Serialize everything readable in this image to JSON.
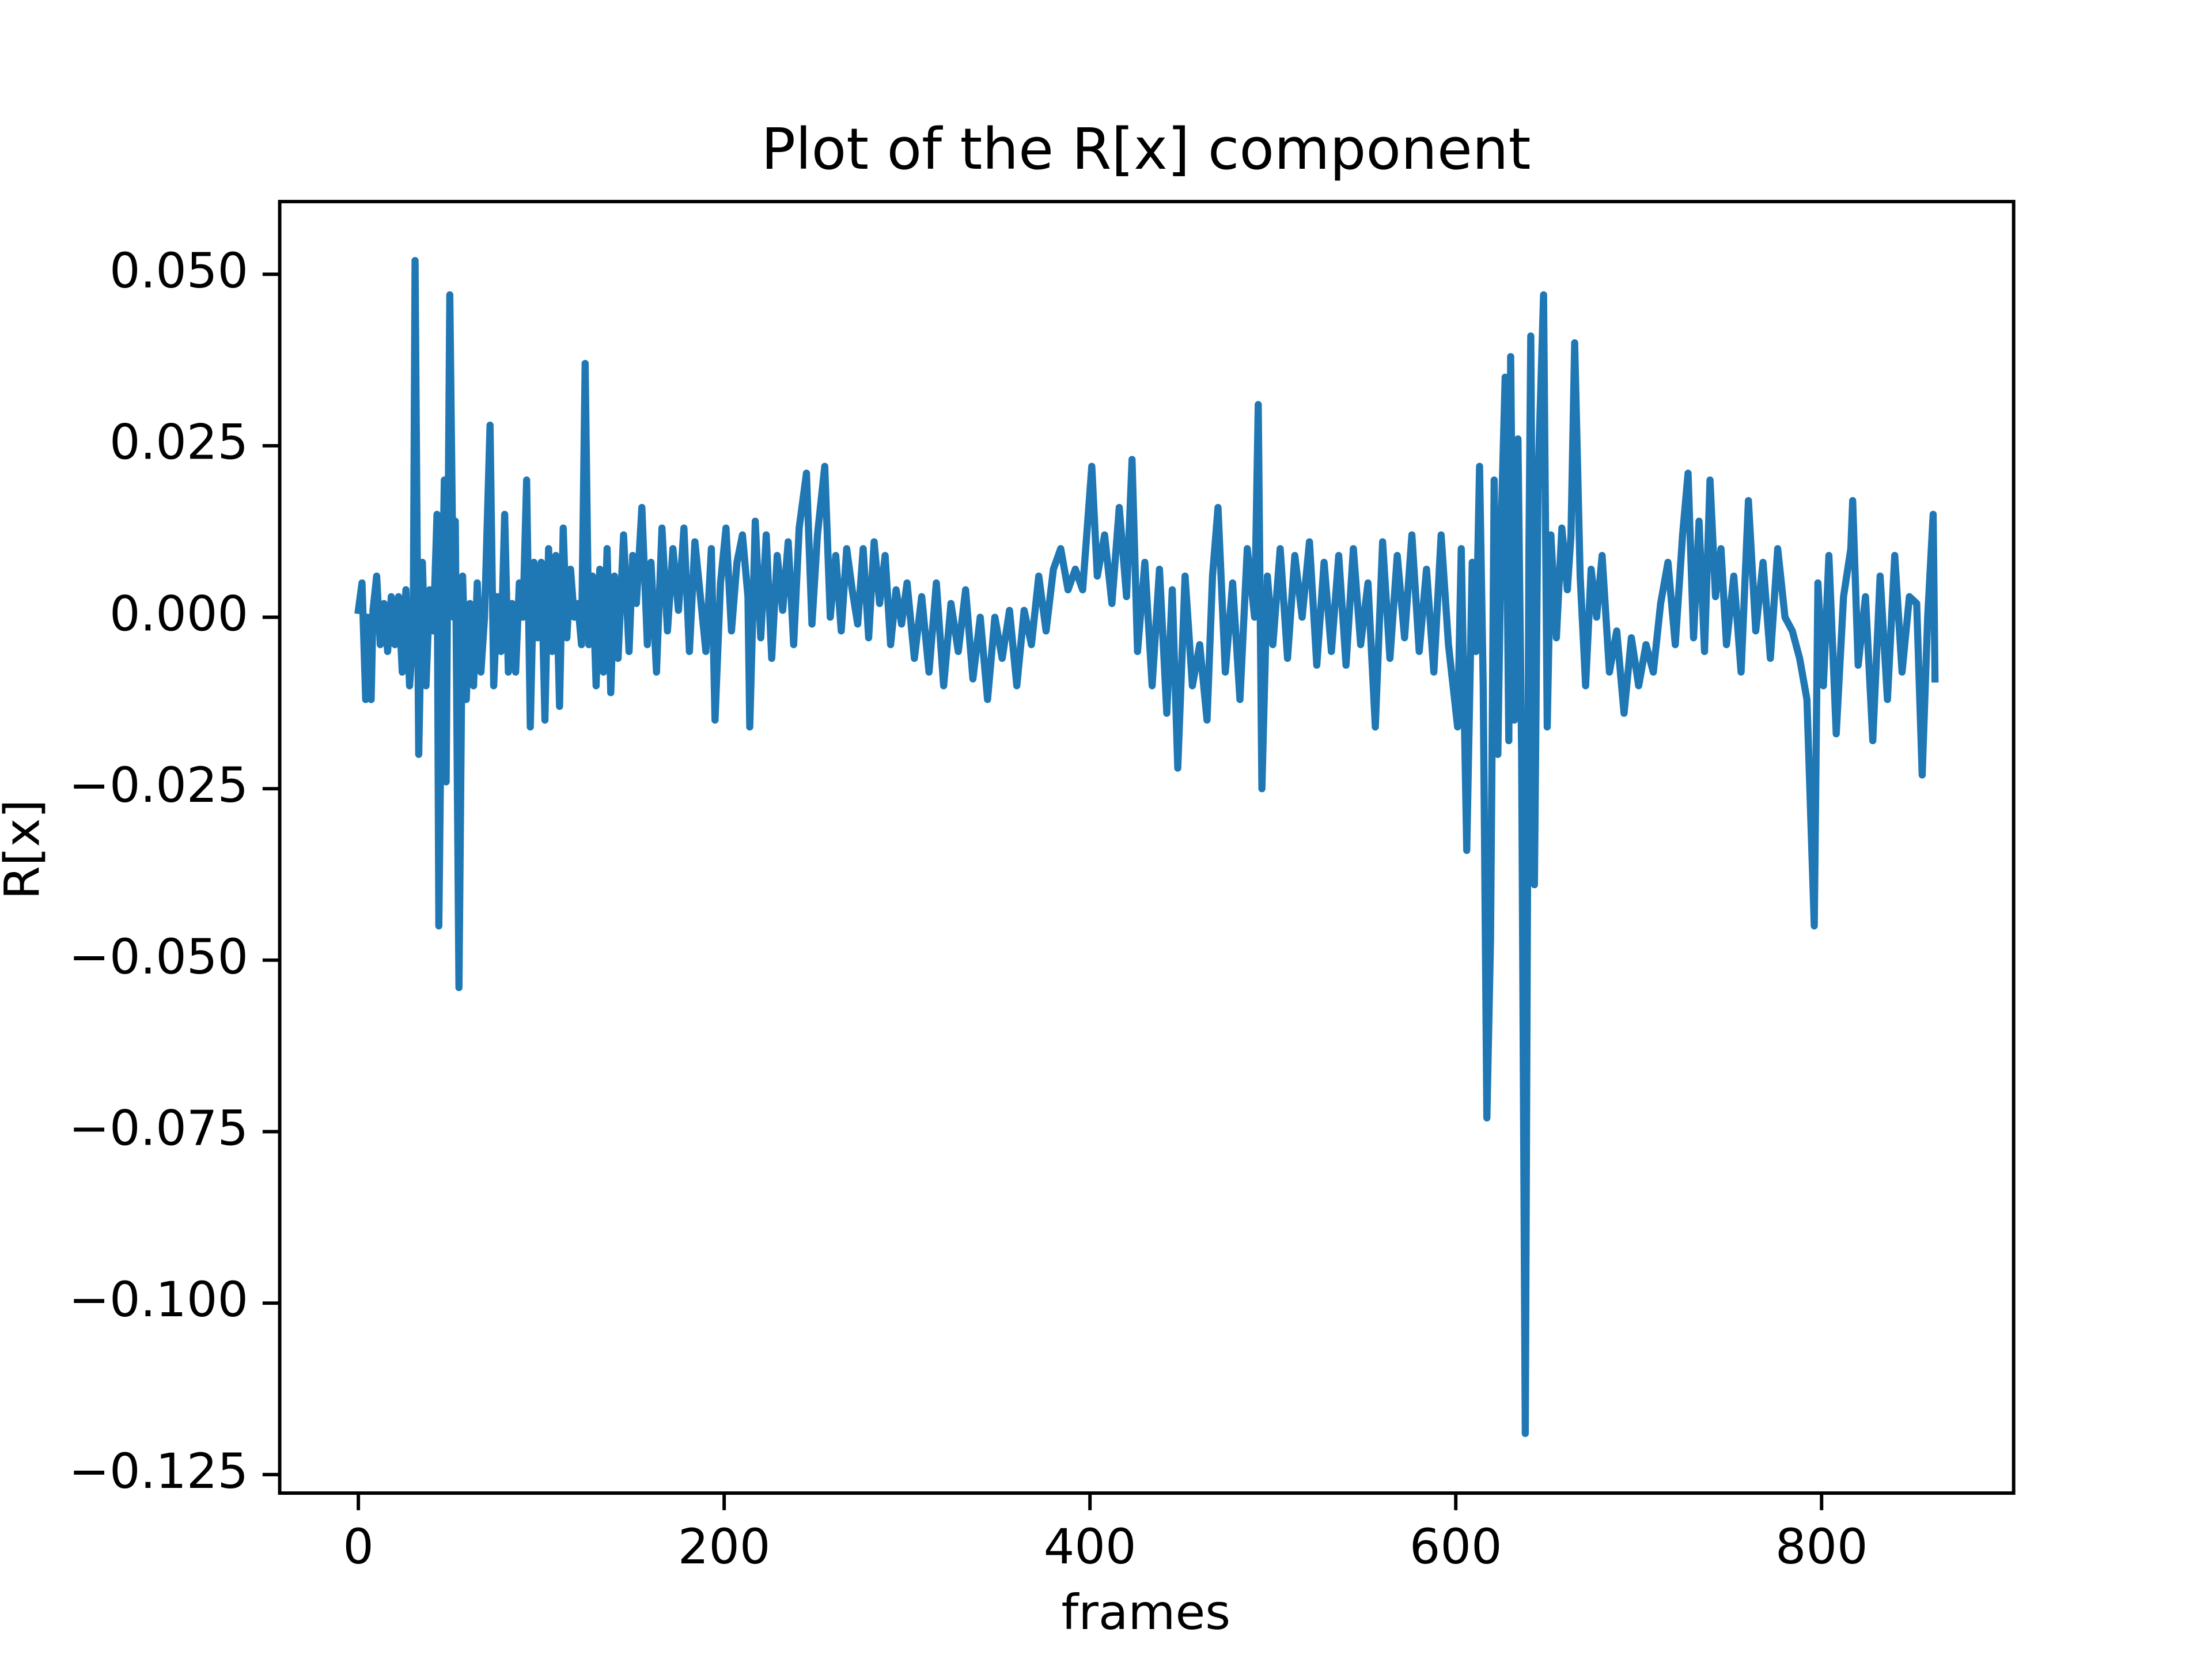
{
  "chart_data": {
    "type": "line",
    "title": "Plot of the R[x] component",
    "xlabel": "frames",
    "ylabel": "R[x]",
    "color": "#1f77b4",
    "x": [
      0,
      2,
      4,
      5,
      7,
      8,
      10,
      12,
      14,
      16,
      18,
      20,
      22,
      24,
      26,
      28,
      30,
      31,
      33,
      35,
      37,
      39,
      41,
      43,
      44,
      46,
      47,
      48,
      50,
      52,
      53,
      55,
      57,
      59,
      61,
      63,
      65,
      67,
      69,
      72,
      74,
      76,
      78,
      80,
      82,
      84,
      86,
      88,
      90,
      92,
      94,
      96,
      98,
      100,
      102,
      104,
      106,
      108,
      110,
      112,
      114,
      116,
      118,
      120,
      122,
      124,
      126,
      128,
      130,
      132,
      134,
      136,
      138,
      140,
      142,
      145,
      148,
      150,
      152,
      155,
      158,
      160,
      163,
      166,
      169,
      172,
      175,
      178,
      181,
      184,
      187,
      190,
      193,
      195,
      198,
      201,
      204,
      207,
      210,
      213,
      214,
      217,
      220,
      223,
      226,
      229,
      232,
      235,
      238,
      241,
      245,
      248,
      251,
      255,
      258,
      261,
      264,
      267,
      270,
      273,
      276,
      279,
      282,
      285,
      288,
      291,
      294,
      297,
      300,
      304,
      308,
      312,
      316,
      320,
      324,
      328,
      332,
      336,
      340,
      344,
      348,
      352,
      356,
      360,
      364,
      368,
      372,
      376,
      380,
      384,
      388,
      392,
      396,
      401,
      404,
      408,
      412,
      416,
      420,
      423,
      426,
      430,
      434,
      438,
      442,
      445,
      448,
      452,
      456,
      460,
      464,
      467,
      470,
      474,
      478,
      482,
      486,
      490,
      492,
      494,
      497,
      500,
      504,
      508,
      512,
      516,
      520,
      524,
      528,
      532,
      536,
      540,
      544,
      548,
      552,
      556,
      560,
      564,
      568,
      572,
      576,
      580,
      584,
      588,
      592,
      596,
      601,
      603,
      606,
      609,
      611,
      613,
      615,
      617,
      619,
      621,
      623,
      625,
      627,
      629,
      630,
      632,
      634,
      636,
      638,
      640,
      641,
      643,
      645,
      648,
      650,
      652,
      655,
      658,
      661,
      663,
      665,
      668,
      671,
      674,
      677,
      680,
      684,
      688,
      692,
      696,
      700,
      704,
      708,
      712,
      716,
      720,
      724,
      727,
      730,
      733,
      736,
      739,
      742,
      745,
      748,
      752,
      756,
      760,
      764,
      768,
      772,
      776,
      780,
      784,
      788,
      792,
      796,
      798,
      801,
      804,
      808,
      812,
      816,
      817,
      820,
      824,
      828,
      832,
      836,
      840,
      844,
      848,
      852,
      855,
      858,
      861,
      862
    ],
    "values": [
      0.001,
      0.005,
      -0.012,
      0.0,
      -0.012,
      0.001,
      0.006,
      -0.004,
      0.002,
      -0.005,
      0.003,
      -0.004,
      0.003,
      -0.008,
      0.004,
      -0.01,
      -0.002,
      0.052,
      -0.02,
      0.008,
      -0.01,
      0.004,
      -0.002,
      0.015,
      -0.045,
      0.004,
      0.02,
      -0.024,
      0.047,
      0.0,
      0.014,
      -0.054,
      0.006,
      -0.012,
      0.002,
      -0.01,
      0.005,
      -0.008,
      0.0,
      0.028,
      -0.01,
      0.003,
      -0.005,
      0.015,
      -0.008,
      0.002,
      -0.008,
      0.005,
      0.0,
      0.02,
      -0.016,
      0.008,
      -0.003,
      0.008,
      -0.015,
      0.01,
      -0.005,
      0.009,
      -0.013,
      0.013,
      -0.003,
      0.007,
      0.0,
      0.002,
      -0.004,
      0.037,
      -0.004,
      0.006,
      -0.01,
      0.007,
      -0.008,
      0.01,
      -0.011,
      0.006,
      -0.006,
      0.012,
      -0.005,
      0.009,
      0.002,
      0.016,
      -0.004,
      0.008,
      -0.008,
      0.013,
      -0.002,
      0.01,
      0.001,
      0.013,
      -0.005,
      0.011,
      0.003,
      -0.005,
      0.01,
      -0.015,
      0.005,
      0.013,
      -0.002,
      0.008,
      0.012,
      0.003,
      -0.016,
      0.014,
      -0.003,
      0.012,
      -0.006,
      0.009,
      0.001,
      0.011,
      -0.004,
      0.013,
      0.021,
      -0.001,
      0.012,
      0.022,
      0.0,
      0.009,
      -0.002,
      0.01,
      0.004,
      -0.001,
      0.01,
      -0.003,
      0.011,
      0.002,
      0.009,
      -0.004,
      0.004,
      -0.001,
      0.005,
      -0.006,
      0.003,
      -0.008,
      0.005,
      -0.01,
      0.002,
      -0.005,
      0.004,
      -0.009,
      0.0,
      -0.012,
      0.0,
      -0.006,
      0.001,
      -0.01,
      0.001,
      -0.004,
      0.006,
      -0.002,
      0.007,
      0.01,
      0.004,
      0.007,
      0.004,
      0.022,
      0.006,
      0.012,
      0.002,
      0.016,
      0.003,
      0.023,
      -0.005,
      0.008,
      -0.01,
      0.007,
      -0.014,
      0.004,
      -0.022,
      0.006,
      -0.01,
      -0.004,
      -0.015,
      0.006,
      0.016,
      -0.008,
      0.005,
      -0.012,
      0.01,
      0.0,
      0.031,
      -0.025,
      0.006,
      -0.004,
      0.01,
      -0.006,
      0.009,
      0.0,
      0.011,
      -0.007,
      0.008,
      -0.005,
      0.009,
      -0.007,
      0.01,
      -0.004,
      0.005,
      -0.016,
      0.011,
      -0.006,
      0.009,
      -0.003,
      0.012,
      -0.005,
      0.007,
      -0.008,
      0.012,
      -0.004,
      -0.016,
      0.01,
      -0.034,
      0.008,
      -0.005,
      0.022,
      -0.01,
      -0.073,
      -0.047,
      0.02,
      -0.02,
      0.015,
      0.035,
      -0.018,
      0.038,
      -0.015,
      0.026,
      -0.02,
      -0.119,
      0.01,
      0.041,
      -0.039,
      0.02,
      0.047,
      -0.016,
      0.012,
      -0.003,
      0.013,
      0.004,
      0.012,
      0.04,
      0.006,
      -0.01,
      0.007,
      0.0,
      0.009,
      -0.008,
      -0.002,
      -0.014,
      -0.003,
      -0.01,
      -0.004,
      -0.008,
      0.002,
      0.008,
      -0.004,
      0.012,
      0.021,
      -0.003,
      0.014,
      -0.005,
      0.02,
      0.003,
      0.01,
      -0.004,
      0.006,
      -0.008,
      0.017,
      -0.002,
      0.008,
      -0.006,
      0.01,
      0.0,
      -0.002,
      -0.006,
      -0.012,
      -0.045,
      0.005,
      -0.01,
      0.009,
      -0.017,
      0.003,
      0.01,
      0.017,
      -0.007,
      0.003,
      -0.018,
      0.006,
      -0.012,
      0.009,
      -0.008,
      0.003,
      0.002,
      -0.023,
      0.0,
      0.015,
      -0.009
    ],
    "xlim": [
      -43,
      905
    ],
    "ylim": [
      -0.1277,
      0.0606
    ],
    "xticks": [
      0,
      200,
      400,
      600,
      800
    ],
    "yticks": [
      {
        "value": -0.125,
        "label": "−0.125"
      },
      {
        "value": -0.1,
        "label": "−0.100"
      },
      {
        "value": -0.075,
        "label": "−0.075"
      },
      {
        "value": -0.05,
        "label": "−0.050"
      },
      {
        "value": -0.025,
        "label": "−0.025"
      },
      {
        "value": 0,
        "label": "0.000"
      },
      {
        "value": 0.025,
        "label": "0.025"
      },
      {
        "value": 0.05,
        "label": "0.050"
      }
    ],
    "grid": false
  }
}
